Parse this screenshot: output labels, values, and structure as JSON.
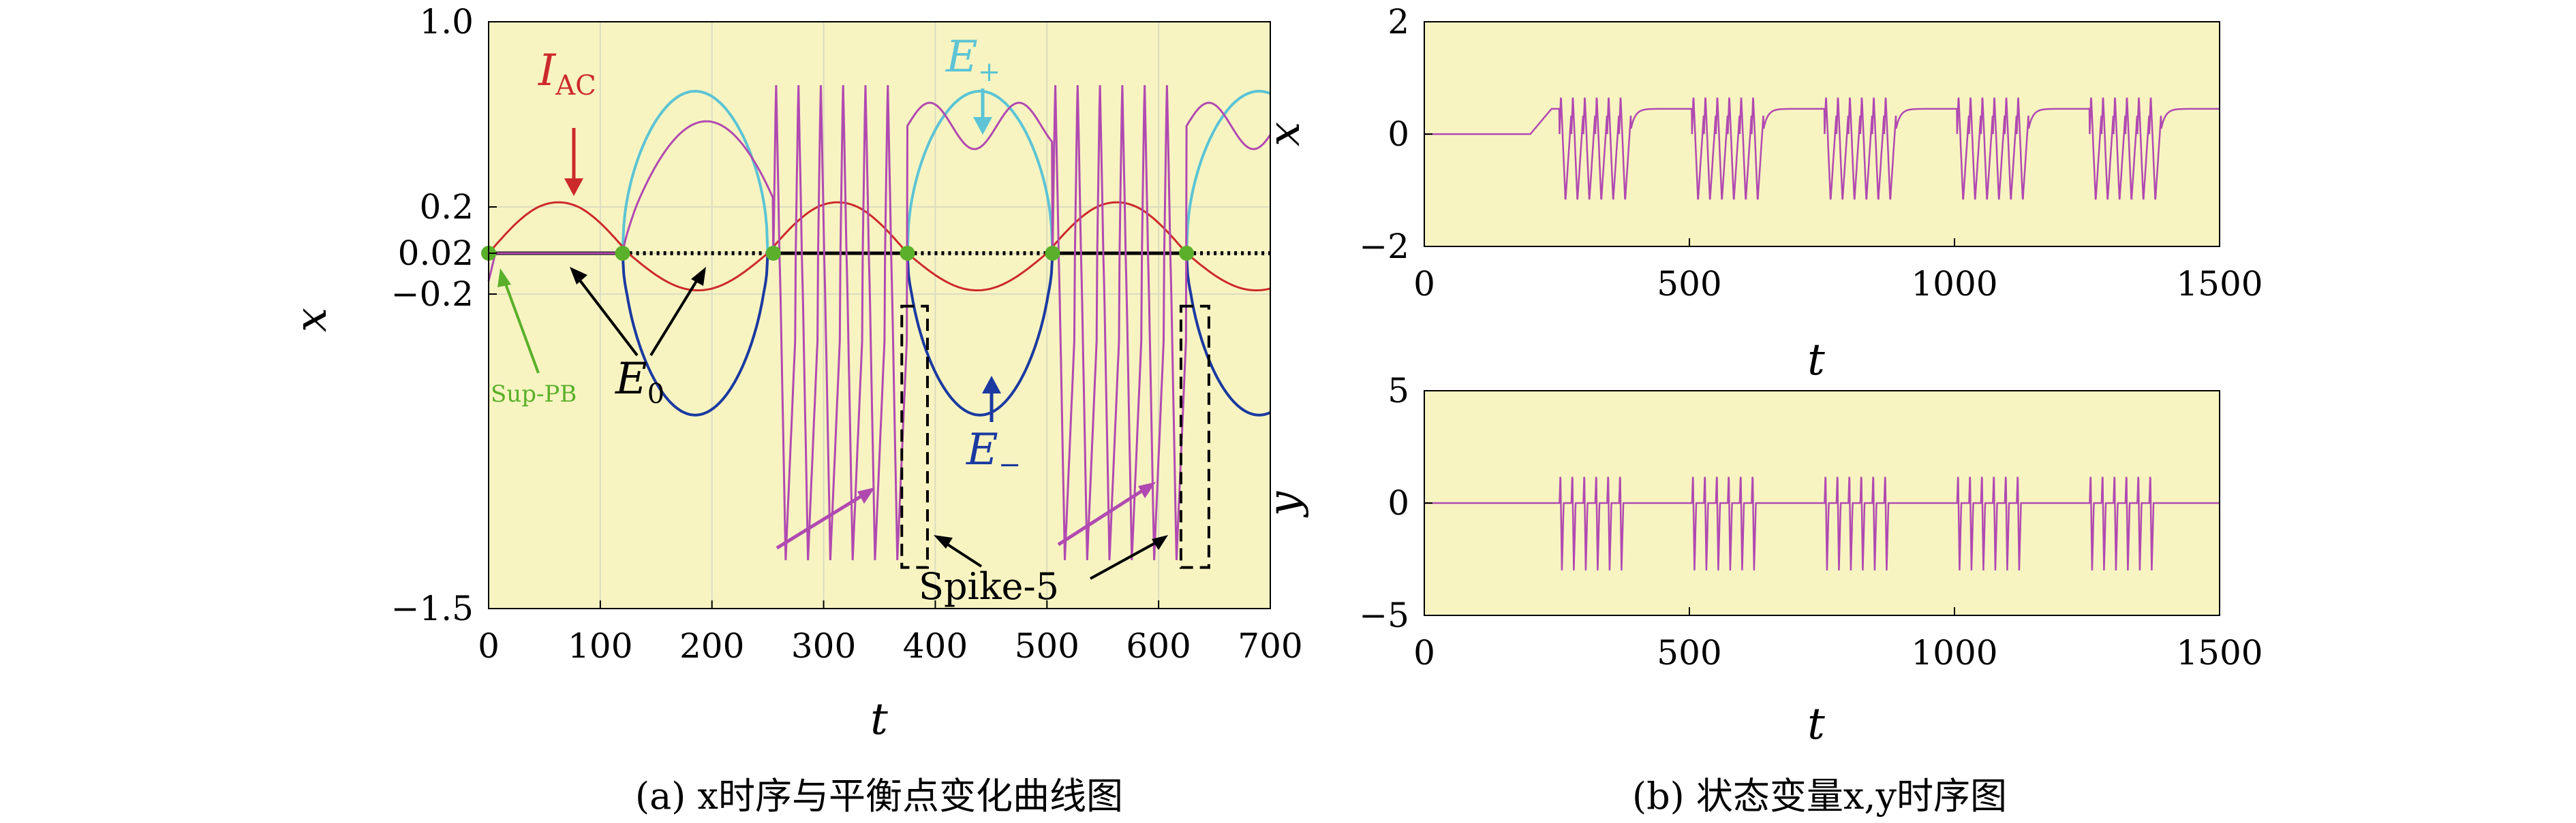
{
  "colors": {
    "panel_bg": "#f8f4c2",
    "x_series": "#b04ab0",
    "iac": "#cc2a2a",
    "e_plus": "#5cc4d4",
    "e_minus": "#1a3aa0",
    "sup_pb": "#5ab02a",
    "e0": "#000000"
  },
  "chart_data": [
    {
      "id": "a",
      "type": "line",
      "caption": "(a) x时序与平衡点变化曲线图",
      "xlabel": "t",
      "ylabel": "x",
      "xlim": [
        0,
        700
      ],
      "ylim": [
        -1.5,
        1.0
      ],
      "xticks": [
        "0",
        "100",
        "200",
        "300",
        "400",
        "500",
        "600",
        "700"
      ],
      "yticks": [
        "1.0",
        "0.2",
        "0.02",
        "-0.2",
        "-1.5"
      ],
      "grid": true,
      "annotations": {
        "iac_main": "I",
        "iac_sub": "AC",
        "eplus_main": "E",
        "eplus_sub": "+",
        "eminus_main": "E",
        "eminus_sub": "−",
        "e0_main": "E",
        "e0_sub": "0",
        "sup_pb": "Sup-PB",
        "spike": "Spike-5"
      },
      "sup_pb_points_t": [
        0,
        120,
        255,
        375,
        505,
        625
      ],
      "spike_windows_t": [
        [
          370,
          393
        ],
        [
          620,
          645
        ]
      ],
      "series": [
        {
          "key": "iac",
          "amplitude": 0.2,
          "period": 250,
          "phase_t": 0
        },
        {
          "key": "e_plus",
          "peak": 0.7,
          "intervals_t": [
            [
              120,
              255
            ],
            [
              375,
              505
            ],
            [
              625,
              700
            ]
          ]
        },
        {
          "key": "e_minus",
          "trough": -0.7,
          "intervals_t": [
            [
              120,
              255
            ],
            [
              375,
              505
            ],
            [
              625,
              700
            ]
          ]
        },
        {
          "key": "x",
          "burst_intervals_t": [
            [
              255,
              375
            ],
            [
              505,
              625
            ]
          ],
          "spike_max": 0.75,
          "spike_min": -1.3
        }
      ]
    },
    {
      "id": "b_x",
      "type": "line",
      "xlabel": "t",
      "ylabel": "x",
      "xlim": [
        0,
        1500
      ],
      "ylim": [
        -2,
        2
      ],
      "xticks": [
        "0",
        "500",
        "1000",
        "1500"
      ],
      "yticks": [
        "2",
        "0",
        "−2"
      ],
      "bursts_t": [
        [
          255,
          390
        ],
        [
          505,
          640
        ],
        [
          755,
          890
        ],
        [
          1005,
          1140
        ],
        [
          1255,
          1390
        ]
      ],
      "spike_max": 0.7,
      "spike_min": -1.2,
      "quiet_level": 0.45
    },
    {
      "id": "b_y",
      "type": "line",
      "xlabel": "t",
      "ylabel": "y",
      "xlim": [
        0,
        1500
      ],
      "ylim": [
        -5,
        5
      ],
      "xticks": [
        "0",
        "500",
        "1000",
        "1500"
      ],
      "yticks": [
        "5",
        "0",
        "−5"
      ],
      "bursts_t": [
        [
          255,
          390
        ],
        [
          505,
          640
        ],
        [
          755,
          890
        ],
        [
          1005,
          1140
        ],
        [
          1255,
          1390
        ]
      ],
      "spike_max": 1.4,
      "spike_min": -3.0
    },
    {
      "id": "b",
      "caption": "(b) 状态变量x,y时序图"
    }
  ]
}
